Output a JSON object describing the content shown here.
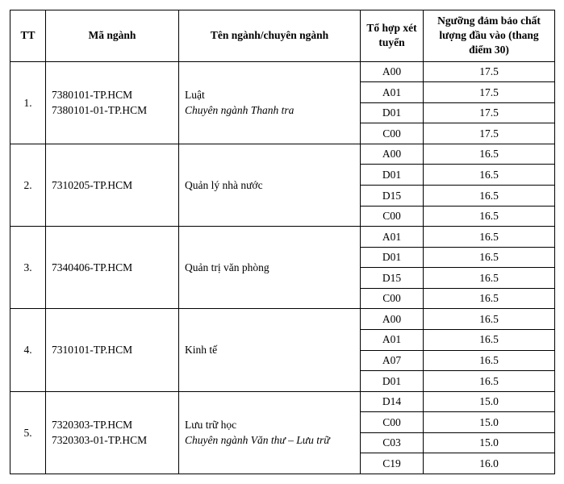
{
  "headers": {
    "tt": "TT",
    "code": "Mã ngành",
    "name": "Tên ngành/chuyên ngành",
    "combo": "Tổ hợp xét tuyển",
    "threshold": "Ngưỡng đảm bảo chất lượng đầu vào (thang điểm 30)"
  },
  "rows": [
    {
      "tt": "1.",
      "codes": [
        "7380101-TP.HCM",
        "7380101-01-TP.HCM"
      ],
      "name_main": "Luật",
      "name_sub": "Chuyên ngành Thanh tra",
      "subjects": [
        {
          "combo": "A00",
          "score": "17.5"
        },
        {
          "combo": "A01",
          "score": "17.5"
        },
        {
          "combo": "D01",
          "score": "17.5"
        },
        {
          "combo": "C00",
          "score": "17.5"
        }
      ]
    },
    {
      "tt": "2.",
      "codes": [
        "7310205-TP.HCM"
      ],
      "name_main": "Quản lý nhà nước",
      "name_sub": "",
      "subjects": [
        {
          "combo": "A00",
          "score": "16.5"
        },
        {
          "combo": "D01",
          "score": "16.5"
        },
        {
          "combo": "D15",
          "score": "16.5"
        },
        {
          "combo": "C00",
          "score": "16.5"
        }
      ]
    },
    {
      "tt": "3.",
      "codes": [
        "7340406-TP.HCM"
      ],
      "name_main": "Quản trị văn phòng",
      "name_sub": "",
      "subjects": [
        {
          "combo": "A01",
          "score": "16.5"
        },
        {
          "combo": "D01",
          "score": "16.5"
        },
        {
          "combo": "D15",
          "score": "16.5"
        },
        {
          "combo": "C00",
          "score": "16.5"
        }
      ]
    },
    {
      "tt": "4.",
      "codes": [
        "7310101-TP.HCM"
      ],
      "name_main": "Kinh tế",
      "name_sub": "",
      "subjects": [
        {
          "combo": "A00",
          "score": "16.5"
        },
        {
          "combo": "A01",
          "score": "16.5"
        },
        {
          "combo": "A07",
          "score": "16.5"
        },
        {
          "combo": "D01",
          "score": "16.5"
        }
      ]
    },
    {
      "tt": "5.",
      "codes": [
        "7320303-TP.HCM",
        "7320303-01-TP.HCM"
      ],
      "name_main": "Lưu trữ học",
      "name_sub": "Chuyên ngành Văn thư – Lưu trữ",
      "subjects": [
        {
          "combo": "D14",
          "score": "15.0"
        },
        {
          "combo": "C00",
          "score": "15.0"
        },
        {
          "combo": "C03",
          "score": "15.0"
        },
        {
          "combo": "C19",
          "score": "16.0"
        }
      ]
    }
  ]
}
